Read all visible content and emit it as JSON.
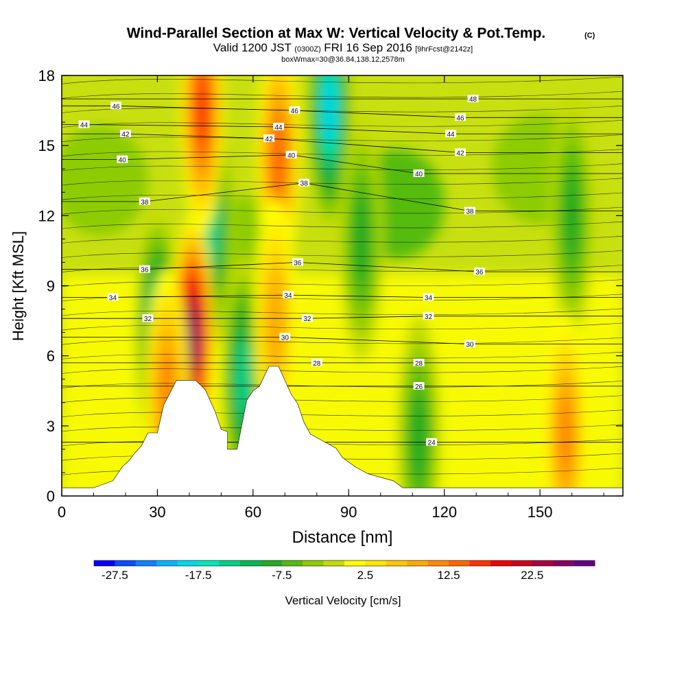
{
  "header": {
    "title": "Wind-Parallel Section at Max W: Vertical Velocity & Pot.Temp.",
    "copyright": "(C)",
    "valid_prefix": "Valid 1200 JST",
    "valid_utc": "(0300Z)",
    "valid_date": "FRI 16 Sep 2016",
    "forecast": "[9hrFcst@2142z]",
    "box_info": "boxWmax=30@36.84,138.12,2578m"
  },
  "chart_data": {
    "type": "heatmap",
    "title": "Wind-Parallel Section at Max W: Vertical Velocity & Pot.Temp.",
    "xlabel": "Distance [nm]",
    "ylabel": "Height [Kft MSL]",
    "xlim": [
      0,
      176
    ],
    "ylim": [
      0,
      18
    ],
    "xticks": [
      0,
      30,
      60,
      90,
      120,
      150
    ],
    "yticks": [
      0,
      3,
      6,
      9,
      12,
      15,
      18
    ],
    "colorbar": {
      "label": "Vertical Velocity [cm/s]",
      "tick_labels": [
        "-27.5",
        "-17.5",
        "-7.5",
        "2.5",
        "12.5",
        "22.5"
      ],
      "tick_values": [
        -27.5,
        -17.5,
        -7.5,
        2.5,
        12.5,
        22.5
      ],
      "min": -30,
      "step": 2.5,
      "colors": [
        "#0000ff",
        "#0a4dff",
        "#0b82ff",
        "#00b4ff",
        "#00d8ee",
        "#00e8b8",
        "#00d088",
        "#00b850",
        "#22aa22",
        "#55bb11",
        "#8ccc00",
        "#c4dd00",
        "#ffff00",
        "#ffe600",
        "#ffc800",
        "#ffaa00",
        "#ff8800",
        "#ff6600",
        "#ff3300",
        "#ee0000",
        "#cc0022",
        "#aa0044",
        "#880066",
        "#660088"
      ]
    },
    "updrafts": [
      {
        "x": 41,
        "z": 6.8,
        "w": 27.5
      },
      {
        "x": 44,
        "z": 16.5,
        "w": 17.5
      },
      {
        "x": 68,
        "z": 14.5,
        "w": 15
      },
      {
        "x": 33,
        "z": 4.5,
        "w": 12.5
      },
      {
        "x": 158,
        "z": 2.6,
        "w": 12.5
      },
      {
        "x": 67,
        "z": 7.5,
        "w": 10
      }
    ],
    "downdrafts": [
      {
        "x": 84,
        "z": 16.5,
        "w": -20
      },
      {
        "x": 30,
        "z": 7,
        "w": -17.5
      },
      {
        "x": 47,
        "z": 11.5,
        "w": -15
      },
      {
        "x": 57,
        "z": 5,
        "w": -15
      },
      {
        "x": 112,
        "z": 2.5,
        "w": -10
      },
      {
        "x": 94,
        "z": 11,
        "w": -10
      },
      {
        "x": 160,
        "z": 12,
        "w": -10
      }
    ],
    "isentrope_labels": [
      {
        "x": 17,
        "z": 16.7,
        "text": "46"
      },
      {
        "x": 7,
        "z": 15.9,
        "text": "44"
      },
      {
        "x": 20,
        "z": 15.5,
        "text": "42"
      },
      {
        "x": 19,
        "z": 14.4,
        "text": "40"
      },
      {
        "x": 26,
        "z": 12.6,
        "text": "38"
      },
      {
        "x": 26,
        "z": 9.7,
        "text": "36"
      },
      {
        "x": 16,
        "z": 8.5,
        "text": "34"
      },
      {
        "x": 27,
        "z": 7.6,
        "text": "32"
      },
      {
        "x": 73,
        "z": 16.5,
        "text": "46"
      },
      {
        "x": 68,
        "z": 15.8,
        "text": "44"
      },
      {
        "x": 65,
        "z": 15.3,
        "text": "42"
      },
      {
        "x": 72,
        "z": 14.6,
        "text": "40"
      },
      {
        "x": 76,
        "z": 13.4,
        "text": "38"
      },
      {
        "x": 74,
        "z": 10.0,
        "text": "36"
      },
      {
        "x": 71,
        "z": 8.6,
        "text": "34"
      },
      {
        "x": 77,
        "z": 7.6,
        "text": "32"
      },
      {
        "x": 70,
        "z": 6.8,
        "text": "30"
      },
      {
        "x": 80,
        "z": 5.7,
        "text": "28"
      },
      {
        "x": 129,
        "z": 17.0,
        "text": "48"
      },
      {
        "x": 125,
        "z": 16.2,
        "text": "46"
      },
      {
        "x": 122,
        "z": 15.5,
        "text": "44"
      },
      {
        "x": 125,
        "z": 14.7,
        "text": "42"
      },
      {
        "x": 112,
        "z": 13.8,
        "text": "40"
      },
      {
        "x": 128,
        "z": 12.2,
        "text": "38"
      },
      {
        "x": 131,
        "z": 9.6,
        "text": "36"
      },
      {
        "x": 115,
        "z": 8.5,
        "text": "34"
      },
      {
        "x": 115,
        "z": 7.7,
        "text": "32"
      },
      {
        "x": 128,
        "z": 6.5,
        "text": "30"
      },
      {
        "x": 112,
        "z": 5.7,
        "text": "28"
      },
      {
        "x": 112,
        "z": 4.7,
        "text": "26"
      },
      {
        "x": 116,
        "z": 2.3,
        "text": "24"
      }
    ],
    "terrain": [
      [
        0,
        0.35
      ],
      [
        10,
        0.35
      ],
      [
        16,
        0.65
      ],
      [
        19,
        1.25
      ],
      [
        21,
        1.5
      ],
      [
        23,
        1.85
      ],
      [
        25,
        2.15
      ],
      [
        27,
        2.7
      ],
      [
        30,
        2.7
      ],
      [
        32,
        3.9
      ],
      [
        36,
        4.95
      ],
      [
        42,
        4.95
      ],
      [
        45,
        4.55
      ],
      [
        48,
        3.65
      ],
      [
        50,
        2.85
      ],
      [
        52,
        2.75
      ],
      [
        52,
        2.0
      ],
      [
        55,
        2.0
      ],
      [
        56,
        2.7
      ],
      [
        58,
        4.1
      ],
      [
        60,
        4.5
      ],
      [
        62,
        4.7
      ],
      [
        65,
        5.55
      ],
      [
        68,
        5.55
      ],
      [
        72,
        4.35
      ],
      [
        74,
        3.95
      ],
      [
        76,
        3.15
      ],
      [
        78,
        2.65
      ],
      [
        82,
        2.35
      ],
      [
        86,
        2.05
      ],
      [
        88,
        1.65
      ],
      [
        92,
        1.25
      ],
      [
        96,
        0.95
      ],
      [
        104,
        0.65
      ],
      [
        107,
        0.35
      ],
      [
        176,
        0.35
      ]
    ]
  }
}
